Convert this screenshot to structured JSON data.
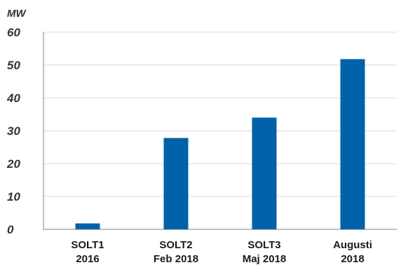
{
  "colors": {
    "bar": "#0062A8",
    "grid": "#d9d9d9",
    "axis": "#7f7f7f",
    "text": "#333333"
  },
  "chart_data": {
    "type": "bar",
    "unit_label": "MW",
    "categories": [
      [
        "SOLT1",
        "2016"
      ],
      [
        "SOLT2",
        "Feb 2018"
      ],
      [
        "SOLT3",
        "Maj 2018"
      ],
      [
        "Augusti",
        "2018"
      ]
    ],
    "values": [
      1.8,
      27.8,
      34.0,
      51.8
    ],
    "ylim": [
      0,
      60
    ],
    "yticks": [
      0,
      10,
      20,
      30,
      40,
      50,
      60
    ],
    "grid": true,
    "legend": "none"
  }
}
